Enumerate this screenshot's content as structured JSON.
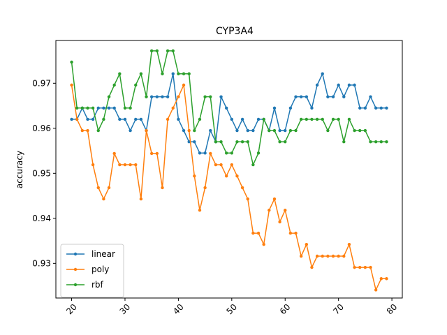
{
  "chart_data": {
    "type": "line",
    "title": "CYP3A4",
    "xlabel": "",
    "ylabel": "accuracy",
    "xlim": [
      17.05,
      81.95
    ],
    "ylim": [
      0.9223,
      0.9795
    ],
    "xticks": [
      20,
      30,
      40,
      50,
      60,
      70,
      80
    ],
    "yticks": [
      0.93,
      0.94,
      0.95,
      0.96,
      0.97
    ],
    "ytick_labels": [
      "0.93",
      "0.94",
      "0.95",
      "0.96",
      "0.97"
    ],
    "grid": false,
    "legend_position": "lower left",
    "x": [
      20,
      21,
      22,
      23,
      24,
      25,
      26,
      27,
      28,
      29,
      30,
      31,
      32,
      33,
      34,
      35,
      36,
      37,
      38,
      39,
      40,
      41,
      42,
      43,
      44,
      45,
      46,
      47,
      48,
      49,
      50,
      51,
      52,
      53,
      54,
      55,
      56,
      57,
      58,
      59,
      60,
      61,
      62,
      63,
      64,
      65,
      66,
      67,
      68,
      69,
      70,
      71,
      72,
      73,
      74,
      75,
      76,
      77,
      78,
      79
    ],
    "series": [
      {
        "name": "linear",
        "color": "#1f77b4",
        "values": [
          0.962,
          0.962,
          0.9645,
          0.962,
          0.962,
          0.9645,
          0.9645,
          0.9645,
          0.9645,
          0.962,
          0.962,
          0.9595,
          0.962,
          0.962,
          0.9595,
          0.967,
          0.967,
          0.967,
          0.967,
          0.9721,
          0.962,
          0.9595,
          0.957,
          0.957,
          0.9545,
          0.9545,
          0.9595,
          0.957,
          0.967,
          0.9645,
          0.962,
          0.9595,
          0.962,
          0.9595,
          0.9595,
          0.962,
          0.962,
          0.9595,
          0.9645,
          0.9595,
          0.9595,
          0.9645,
          0.967,
          0.967,
          0.967,
          0.9645,
          0.9696,
          0.9721,
          0.967,
          0.967,
          0.9696,
          0.967,
          0.9696,
          0.9696,
          0.9645,
          0.9645,
          0.967,
          0.9645,
          0.9645,
          0.9645
        ]
      },
      {
        "name": "poly",
        "color": "#ff7f0e",
        "values": [
          0.9696,
          0.962,
          0.9595,
          0.9595,
          0.9519,
          0.9468,
          0.9443,
          0.9468,
          0.9544,
          0.9519,
          0.9519,
          0.9519,
          0.9519,
          0.9443,
          0.9595,
          0.9544,
          0.9544,
          0.9468,
          0.962,
          0.9645,
          0.967,
          0.9696,
          0.9595,
          0.9494,
          0.9418,
          0.9468,
          0.9544,
          0.9519,
          0.9519,
          0.9494,
          0.9519,
          0.9494,
          0.9468,
          0.9443,
          0.9367,
          0.9367,
          0.9342,
          0.9418,
          0.9443,
          0.9392,
          0.9418,
          0.9367,
          0.9367,
          0.9316,
          0.9342,
          0.9291,
          0.9316,
          0.9316,
          0.9316,
          0.9316,
          0.9316,
          0.9316,
          0.9342,
          0.9291,
          0.9291,
          0.9291,
          0.9291,
          0.9241,
          0.9266,
          0.9266
        ]
      },
      {
        "name": "rbf",
        "color": "#2ca02c",
        "values": [
          0.9747,
          0.9645,
          0.9645,
          0.9645,
          0.9645,
          0.9595,
          0.962,
          0.967,
          0.9696,
          0.9721,
          0.9645,
          0.9645,
          0.9696,
          0.9721,
          0.967,
          0.9772,
          0.9772,
          0.9721,
          0.9772,
          0.9772,
          0.9721,
          0.9721,
          0.9721,
          0.9595,
          0.962,
          0.967,
          0.967,
          0.957,
          0.957,
          0.9545,
          0.9545,
          0.957,
          0.957,
          0.957,
          0.9519,
          0.9545,
          0.962,
          0.9595,
          0.9595,
          0.957,
          0.957,
          0.9595,
          0.9595,
          0.962,
          0.962,
          0.962,
          0.962,
          0.962,
          0.9595,
          0.962,
          0.962,
          0.957,
          0.962,
          0.9595,
          0.9595,
          0.9595,
          0.957,
          0.957,
          0.957,
          0.957
        ]
      }
    ]
  }
}
